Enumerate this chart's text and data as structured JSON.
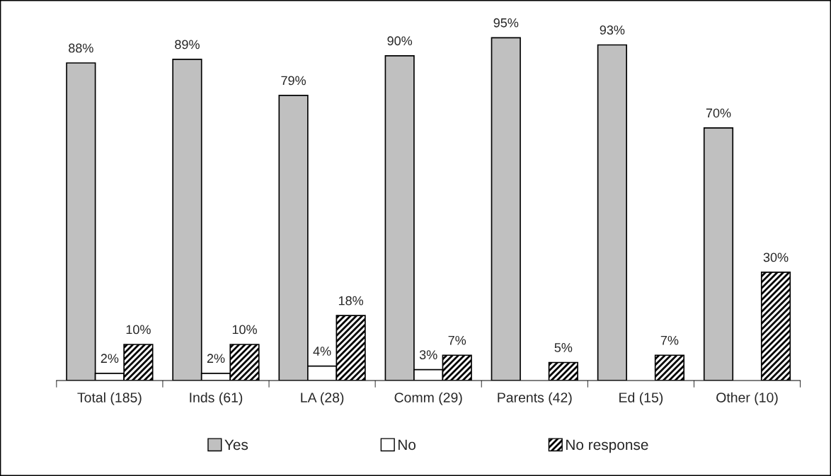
{
  "chart_data": {
    "type": "bar",
    "categories": [
      "Total (185)",
      "Inds (61)",
      "LA (28)",
      "Comm (29)",
      "Parents (42)",
      "Ed (15)",
      "Other (10)"
    ],
    "series": [
      {
        "name": "Yes",
        "color": "#c0c0c0",
        "values": [
          88,
          89,
          79,
          90,
          95,
          93,
          70
        ],
        "value_labels": [
          "88%",
          "89%",
          "79%",
          "90%",
          "95%",
          "93%",
          "70%"
        ]
      },
      {
        "name": "No",
        "color": "#ffffff",
        "values": [
          2,
          2,
          4,
          3,
          null,
          null,
          null
        ],
        "value_labels": [
          "2%",
          "2%",
          "4%",
          "3%",
          null,
          null,
          null
        ]
      },
      {
        "name": "No response",
        "color": "#000000",
        "values": [
          10,
          10,
          18,
          7,
          5,
          7,
          30
        ],
        "value_labels": [
          "10%",
          "10%",
          "18%",
          "7%",
          "5%",
          "7%",
          "30%"
        ]
      }
    ],
    "legend": "bottom",
    "grid": false
  }
}
